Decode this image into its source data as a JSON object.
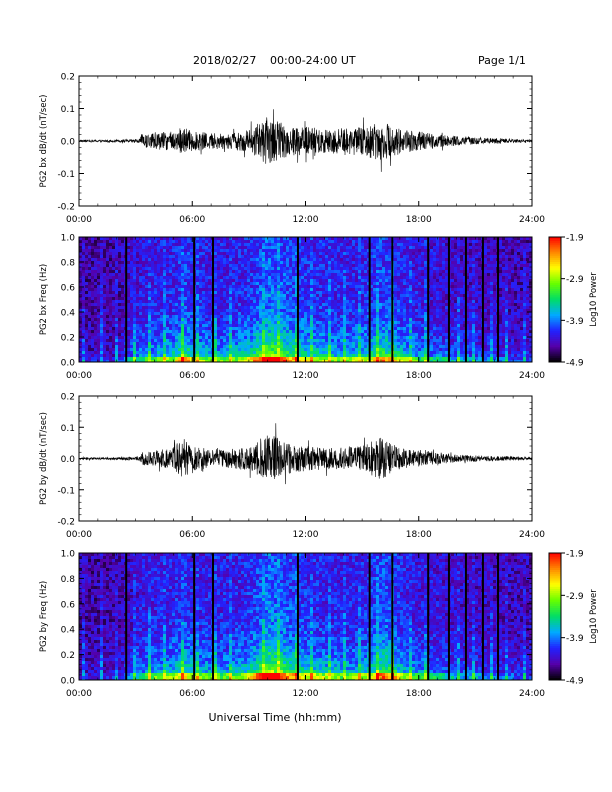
{
  "header": {
    "date": "2018/02/27",
    "time_range": "00:00-24:00 UT",
    "page": "Page 1/1"
  },
  "x_axis": {
    "label": "Universal Time (hh:mm)",
    "ticks": [
      "00:00",
      "06:00",
      "12:00",
      "18:00",
      "24:00"
    ],
    "range_hours": [
      0,
      24
    ]
  },
  "colorbar": {
    "title": "Log10 Power",
    "ticks": [
      "-1.9",
      "-2.9",
      "-3.9",
      "-4.9"
    ],
    "range": [
      -4.9,
      -1.9
    ],
    "colors": [
      "#000000",
      "#5500aa",
      "#2222ff",
      "#00aaff",
      "#00dd66",
      "#66ff00",
      "#ffff00",
      "#ff8800",
      "#ff0000"
    ]
  },
  "chart_data": [
    {
      "type": "line",
      "ylabel": "PG2 bx dB/dt (nT/sec)",
      "ylim": [
        -0.2,
        0.2
      ],
      "yticks": [
        "0.2",
        "0.1",
        "0.0",
        "-0.1",
        "-0.2"
      ],
      "xlim": [
        0,
        24
      ],
      "envelope": {
        "x": [
          0,
          2,
          3.2,
          3.3,
          4,
          5,
          5.5,
          6,
          7,
          8,
          9,
          9.5,
          10,
          10.5,
          11,
          12,
          13,
          14,
          15,
          16,
          16.5,
          17,
          18,
          19,
          20,
          21,
          22,
          23,
          24
        ],
        "amplitude": [
          0.003,
          0.004,
          0.006,
          0.02,
          0.025,
          0.03,
          0.045,
          0.03,
          0.025,
          0.025,
          0.035,
          0.055,
          0.075,
          0.06,
          0.05,
          0.045,
          0.04,
          0.04,
          0.045,
          0.06,
          0.05,
          0.04,
          0.03,
          0.02,
          0.015,
          0.01,
          0.008,
          0.005,
          0.004
        ]
      }
    },
    {
      "type": "heatmap",
      "ylabel": "PG2 bx Freq (Hz)",
      "ylim": [
        0.0,
        1.0
      ],
      "yticks": [
        "1.0",
        "0.8",
        "0.6",
        "0.4",
        "0.2",
        "0.0"
      ],
      "xlim": [
        0,
        24
      ],
      "zlim": [
        -4.9,
        -1.9
      ],
      "gap_times_hours": [
        2.5,
        6.1,
        7.1,
        11.6,
        15.4,
        16.6,
        18.5,
        19.6,
        20.5,
        21.4,
        22.2
      ],
      "activity": {
        "x": [
          0,
          2,
          3.2,
          4,
          5,
          5.5,
          6,
          7,
          8,
          9,
          10,
          10.5,
          11,
          12,
          13,
          14,
          15,
          16,
          16.5,
          17,
          18,
          19,
          20,
          21,
          22,
          23,
          24
        ],
        "level": [
          0.05,
          0.08,
          0.3,
          0.35,
          0.4,
          0.55,
          0.4,
          0.35,
          0.35,
          0.45,
          0.7,
          0.65,
          0.55,
          0.45,
          0.4,
          0.35,
          0.4,
          0.55,
          0.5,
          0.4,
          0.3,
          0.25,
          0.2,
          0.18,
          0.15,
          0.12,
          0.1
        ]
      }
    },
    {
      "type": "line",
      "ylabel": "PG2 by dB/dt (nT/sec)",
      "ylim": [
        -0.2,
        0.2
      ],
      "yticks": [
        "0.2",
        "0.1",
        "0.0",
        "-0.1",
        "-0.2"
      ],
      "xlim": [
        0,
        24
      ],
      "envelope": {
        "x": [
          0,
          2,
          3.2,
          3.3,
          4,
          5,
          5.5,
          6,
          7,
          8,
          9,
          9.5,
          10,
          10.5,
          11,
          12,
          13,
          14,
          15,
          16,
          16.5,
          17,
          18,
          19,
          20,
          21,
          22,
          23,
          24
        ],
        "amplitude": [
          0.003,
          0.004,
          0.006,
          0.02,
          0.025,
          0.035,
          0.07,
          0.04,
          0.03,
          0.03,
          0.04,
          0.06,
          0.075,
          0.07,
          0.05,
          0.04,
          0.035,
          0.035,
          0.04,
          0.07,
          0.05,
          0.035,
          0.025,
          0.018,
          0.012,
          0.01,
          0.008,
          0.006,
          0.004
        ]
      }
    },
    {
      "type": "heatmap",
      "ylabel": "PG2 by Freq (Hz)",
      "ylim": [
        0.0,
        1.0
      ],
      "yticks": [
        "1.0",
        "0.8",
        "0.6",
        "0.4",
        "0.2",
        "0.0"
      ],
      "xlim": [
        0,
        24
      ],
      "zlim": [
        -4.9,
        -1.9
      ],
      "gap_times_hours": [
        2.5,
        6.1,
        7.1,
        11.6,
        15.4,
        16.6,
        18.5,
        19.6,
        20.5,
        21.4,
        22.2
      ],
      "activity": {
        "x": [
          0,
          2,
          3.2,
          4,
          5,
          5.5,
          6,
          7,
          8,
          9,
          10,
          10.5,
          11,
          12,
          13,
          14,
          15,
          16,
          16.5,
          17,
          18,
          19,
          20,
          21,
          22,
          23,
          24
        ],
        "level": [
          0.05,
          0.08,
          0.3,
          0.35,
          0.4,
          0.5,
          0.4,
          0.35,
          0.35,
          0.45,
          0.75,
          0.7,
          0.55,
          0.45,
          0.4,
          0.35,
          0.4,
          0.6,
          0.55,
          0.4,
          0.3,
          0.25,
          0.2,
          0.18,
          0.15,
          0.12,
          0.1
        ]
      }
    }
  ]
}
